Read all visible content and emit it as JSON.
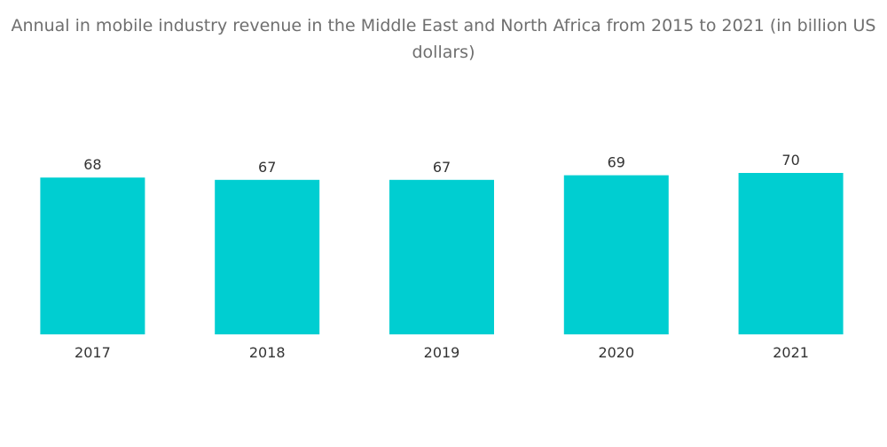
{
  "chart_data": {
    "type": "bar",
    "title": "Annual in mobile industry revenue in the Middle East and North Africa from 2015 to 2021 (in billion US dollars)",
    "xlabel": "",
    "ylabel": "",
    "categories": [
      "2017",
      "2018",
      "2019",
      "2020",
      "2021"
    ],
    "values": [
      68,
      67,
      67,
      69,
      70
    ],
    "ylim": [
      0,
      70
    ],
    "grid": false,
    "legend": "none",
    "data_labels": true,
    "bar_color": "#00ced1"
  }
}
